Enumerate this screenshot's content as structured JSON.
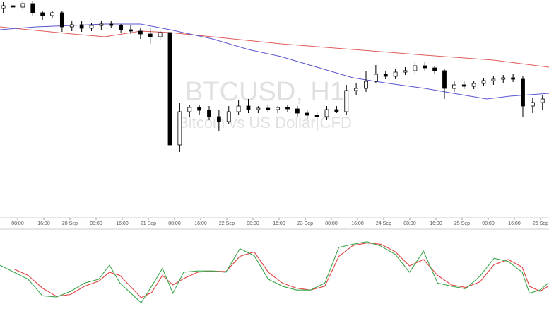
{
  "chart_data": [
    {
      "type": "candlestick",
      "title": "BTCUSD, H1",
      "subtitle": "Bitcoin vs US Dollar CFD",
      "x": [
        1,
        4,
        7,
        10,
        13,
        16,
        19,
        22,
        25,
        28,
        31,
        34,
        37,
        40,
        43,
        46,
        49,
        52,
        55,
        58,
        61,
        64,
        67,
        70,
        73,
        76,
        79,
        82,
        85,
        88,
        91,
        94,
        97,
        100,
        103,
        106,
        109,
        112,
        115,
        118,
        121,
        124,
        127,
        130,
        133,
        136,
        139,
        142,
        145,
        148,
        151,
        154,
        157,
        160,
        163,
        166
      ],
      "open": [
        298,
        302,
        300,
        305,
        292,
        288,
        292,
        272,
        275,
        270,
        274,
        276,
        274,
        268,
        266,
        262,
        258,
        264,
        105,
        152,
        158,
        154,
        145,
        138,
        152,
        160,
        155,
        157,
        155,
        158,
        156,
        150,
        147,
        145,
        155,
        152,
        182,
        185,
        195,
        205,
        202,
        208,
        210,
        217,
        214,
        210,
        185,
        190,
        188,
        192,
        196,
        198,
        200,
        198,
        160,
        165
      ],
      "high": [
        307,
        305,
        308,
        308,
        295,
        295,
        295,
        280,
        280,
        278,
        280,
        280,
        276,
        274,
        270,
        270,
        268,
        266,
        165,
        162,
        162,
        160,
        155,
        160,
        168,
        170,
        160,
        162,
        160,
        162,
        160,
        155,
        152,
        160,
        160,
        190,
        192,
        210,
        218,
        210,
        212,
        215,
        222,
        222,
        216,
        212,
        195,
        195,
        196,
        200,
        202,
        204,
        206,
        202,
        172,
        175
      ],
      "low": [
        292,
        296,
        296,
        288,
        282,
        284,
        265,
        266,
        265,
        266,
        268,
        270,
        264,
        262,
        255,
        248,
        254,
        20,
        95,
        145,
        148,
        140,
        125,
        134,
        148,
        150,
        150,
        152,
        150,
        152,
        145,
        142,
        125,
        140,
        150,
        148,
        175,
        180,
        192,
        198,
        198,
        204,
        206,
        210,
        205,
        170,
        180,
        184,
        184,
        188,
        190,
        192,
        194,
        145,
        150,
        155
      ],
      "close": [
        302,
        300,
        305,
        292,
        288,
        292,
        272,
        275,
        270,
        274,
        276,
        274,
        268,
        266,
        262,
        258,
        264,
        105,
        152,
        158,
        154,
        145,
        138,
        152,
        160,
        155,
        157,
        155,
        158,
        156,
        150,
        147,
        145,
        155,
        152,
        182,
        185,
        195,
        205,
        202,
        208,
        210,
        217,
        214,
        210,
        185,
        190,
        188,
        192,
        196,
        198,
        200,
        198,
        160,
        165,
        170
      ],
      "up_color": "#ffffff",
      "down_color": "#000000",
      "lines": [
        {
          "color": "#e05a5a",
          "x": [
            0,
            11,
            22,
            32,
            43,
            52,
            65,
            86,
            108,
            130,
            151,
            168
          ],
          "values": [
            272,
            267,
            262,
            258,
            266,
            264,
            258,
            248,
            240,
            232,
            225,
            215
          ]
        },
        {
          "color": "#5a55d0",
          "x": [
            0,
            11,
            22,
            32,
            43,
            52,
            65,
            76,
            86,
            97,
            108,
            119,
            130,
            140,
            149,
            156,
            168
          ],
          "values": [
            268,
            272,
            274,
            276,
            276,
            268,
            255,
            240,
            230,
            215,
            200,
            192,
            185,
            177,
            170,
            174,
            178
          ]
        }
      ],
      "xlim": [
        0,
        168
      ],
      "ylim": [
        0,
        310
      ],
      "xticks": [
        {
          "value": 5.4,
          "label": "08:00"
        },
        {
          "value": 13.4,
          "label": "16:00"
        },
        {
          "value": 21.4,
          "label": "20 Sep"
        },
        {
          "value": 29.4,
          "label": "08:00"
        },
        {
          "value": 37.4,
          "label": "16:00"
        },
        {
          "value": 45.4,
          "label": "21 Sep"
        },
        {
          "value": 53.4,
          "label": "08:00"
        },
        {
          "value": 61.4,
          "label": "16:00"
        },
        {
          "value": 69.4,
          "label": "22 Sep"
        },
        {
          "value": 77.4,
          "label": "08:00"
        },
        {
          "value": 85.4,
          "label": "16:00"
        },
        {
          "value": 93.4,
          "label": "23 Sep"
        },
        {
          "value": 101.4,
          "label": "08:00"
        },
        {
          "value": 109.4,
          "label": "16:00"
        },
        {
          "value": 117.4,
          "label": "24 Sep"
        },
        {
          "value": 125.4,
          "label": "08:00"
        },
        {
          "value": 133.4,
          "label": "16:00"
        },
        {
          "value": 141.4,
          "label": "25 Sep"
        },
        {
          "value": 149.4,
          "label": "08:00"
        },
        {
          "value": 157.4,
          "label": "16:00"
        },
        {
          "value": 165.4,
          "label": "26 Sep"
        }
      ]
    },
    {
      "type": "line",
      "x": [
        0,
        4.3,
        8.6,
        13,
        17.3,
        21.6,
        25.9,
        30.2,
        33.5,
        36.7,
        43.2,
        46.4,
        49.7,
        52.9,
        56.2,
        60.5,
        64.8,
        69.1,
        73.4,
        77.8,
        82.1,
        86.4,
        90.7,
        95,
        99.4,
        103.7,
        108,
        112.3,
        116.6,
        121,
        125.3,
        129.6,
        133.9,
        138.2,
        142.5,
        146.9,
        151.2,
        155.5,
        159.8,
        162,
        165.2,
        167.8
      ],
      "series": [
        {
          "color": "#e04040",
          "values": [
            55,
            55,
            45,
            25,
            12,
            15,
            28,
            36,
            50,
            45,
            10,
            18,
            45,
            30,
            40,
            50,
            52,
            51,
            75,
            82,
            50,
            33,
            25,
            22,
            28,
            75,
            92,
            96,
            94,
            82,
            60,
            70,
            45,
            30,
            26,
            35,
            62,
            70,
            58,
            28,
            20,
            28
          ]
        },
        {
          "color": "#3aa64a",
          "values": [
            61,
            50,
            39,
            13,
            11,
            20,
            33,
            39,
            61,
            33,
            2,
            28,
            56,
            17,
            50,
            52,
            52,
            50,
            87,
            76,
            39,
            28,
            22,
            22,
            33,
            89,
            94,
            98,
            91,
            78,
            50,
            83,
            33,
            28,
            24,
            44,
            72,
            67,
            50,
            17,
            22,
            33
          ]
        }
      ],
      "xlim": [
        0,
        168
      ],
      "ylim": [
        0,
        100
      ]
    }
  ]
}
